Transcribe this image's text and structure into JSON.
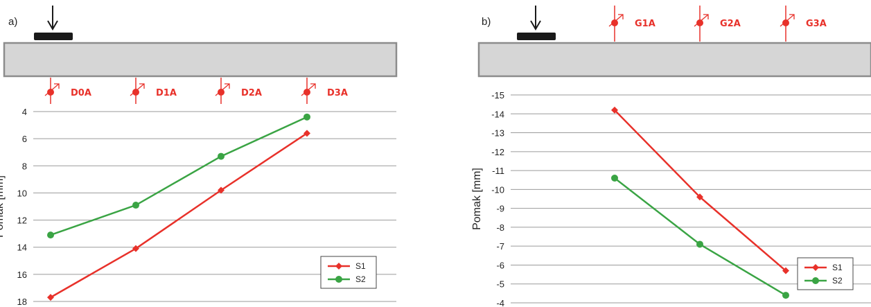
{
  "colors": {
    "S1": "#e8312a",
    "S2": "#3aa444",
    "sensor": "#e8312a",
    "slab_fill": "#d6d6d6",
    "slab_stroke": "#8c8c8c",
    "grid": "#9a9a9a"
  },
  "chart_data": [
    {
      "panel": "a)",
      "type": "line",
      "ylabel": "Pomak [mm]",
      "y_inverted": true,
      "ylim": [
        4,
        18
      ],
      "yticks": [
        4,
        6,
        8,
        10,
        12,
        14,
        16,
        18
      ],
      "grid": "horizontal",
      "legend_position": "bottom-right",
      "categories": [
        "D0A",
        "D1A",
        "D2A",
        "D3A"
      ],
      "sensor_side": "bottom",
      "series": [
        {
          "name": "S1",
          "color_key": "S1",
          "marker": "diamond",
          "values": [
            17.7,
            14.1,
            9.8,
            5.6
          ]
        },
        {
          "name": "S2",
          "color_key": "S2",
          "marker": "circle",
          "values": [
            13.1,
            10.9,
            7.3,
            4.4
          ]
        }
      ]
    },
    {
      "panel": "b)",
      "type": "line",
      "ylabel": "Pomak [mm]",
      "y_inverted": false,
      "ylim": [
        -15,
        -4
      ],
      "yticks": [
        -4,
        -5,
        -6,
        -7,
        -8,
        -9,
        -10,
        -11,
        -12,
        -13,
        -14,
        -15
      ],
      "grid": "horizontal",
      "legend_position": "bottom-right",
      "categories": [
        "G1A",
        "G2A",
        "G3A"
      ],
      "sensor_side": "top",
      "series": [
        {
          "name": "S1",
          "color_key": "S1",
          "marker": "diamond",
          "values": [
            -14.2,
            -9.6,
            -5.7
          ]
        },
        {
          "name": "S2",
          "color_key": "S2",
          "marker": "circle",
          "values": [
            -10.6,
            -7.1,
            -4.4
          ]
        }
      ]
    }
  ]
}
